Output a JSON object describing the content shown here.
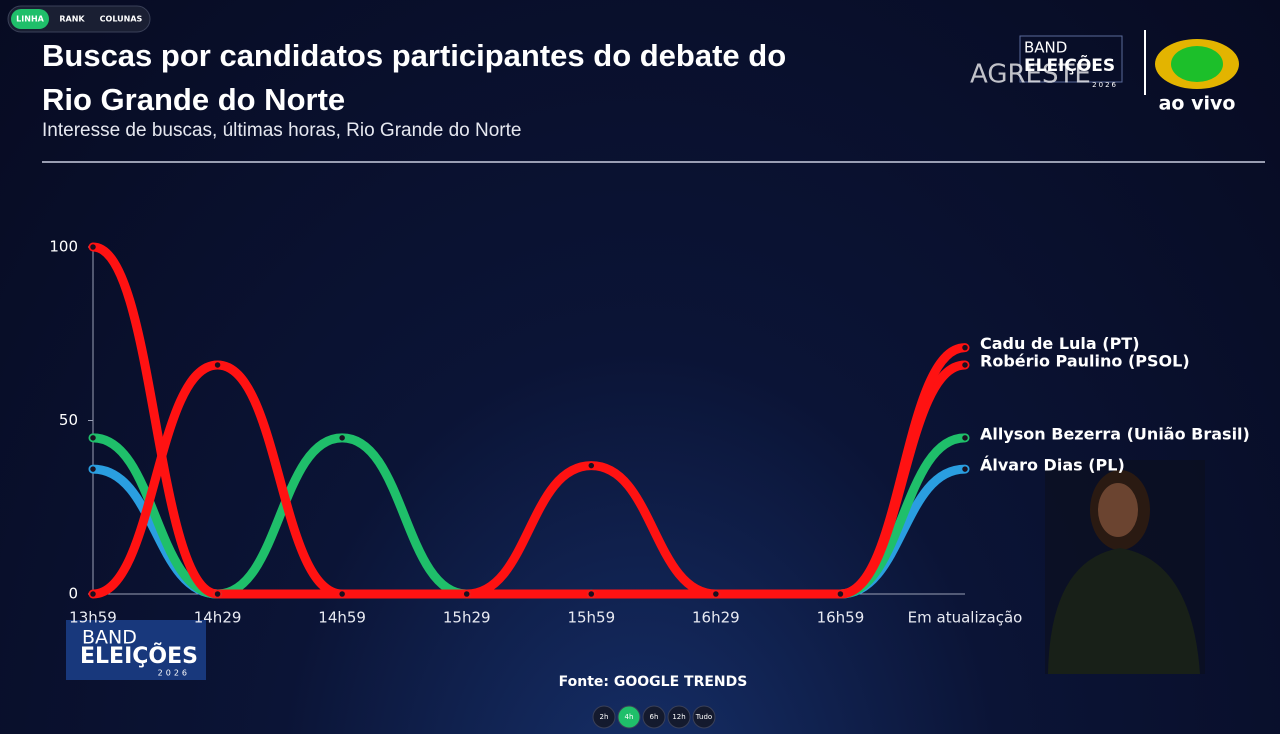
{
  "tabs": [
    "LINHA",
    "RANK",
    "COLUNAS"
  ],
  "logo": {
    "band": "BAND",
    "eleicoes": "ELEIÇÕES",
    "year": "2026",
    "live": "ao vivo",
    "agreste": "AGRESTE"
  },
  "chart_data": {
    "type": "line",
    "title": "Buscas por candidatos participantes do debate do Rio Grande do Norte",
    "subtitle": "Interesse de buscas, últimas horas, Rio Grande do Norte",
    "categories": [
      "13h59",
      "14h29",
      "14h59",
      "15h29",
      "15h59",
      "16h29",
      "16h59",
      "Em atualização"
    ],
    "series": [
      {
        "name": "Álvaro Dias (PL)",
        "color": "#2a9ee0",
        "values": [
          36,
          0,
          0,
          0,
          0,
          0,
          0,
          36
        ]
      },
      {
        "name": "Allyson Bezerra (União Brasil)",
        "color": "#1fbf6a",
        "values": [
          45,
          0,
          45,
          0,
          0,
          0,
          0,
          45
        ]
      },
      {
        "name": "Robério Paulino (PSOL)",
        "color": "#ff1212",
        "values": [
          0,
          66,
          0,
          0,
          37,
          0,
          0,
          66
        ]
      },
      {
        "name": "Cadu de Lula (PT)",
        "color": "#ff1212",
        "values": [
          100,
          0,
          0,
          0,
          0,
          0,
          0,
          71
        ]
      }
    ],
    "ylim": [
      0,
      100
    ],
    "yticks": [
      0,
      50,
      100
    ],
    "source": "Fonte: GOOGLE TRENDS"
  },
  "ranges": [
    "2h",
    "4h",
    "6h",
    "12h",
    "Tudo"
  ],
  "active_range": "4h"
}
